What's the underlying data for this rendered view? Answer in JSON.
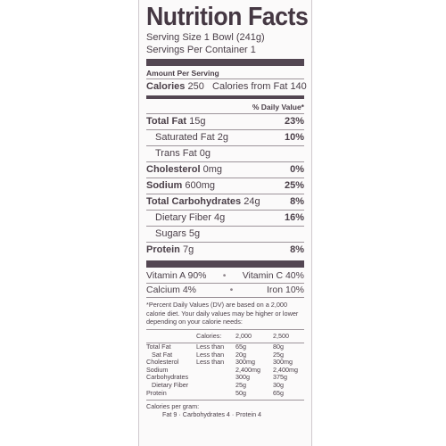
{
  "title": "Nutrition Facts",
  "serving_size": "Serving Size 1 Bowl (241g)",
  "servings_per_container": "Servings Per Container 1",
  "amount_per_serving": "Amount Per Serving",
  "calories": {
    "label": "Calories",
    "value": "250",
    "fat_label": "Calories from Fat",
    "fat_value": "140"
  },
  "dv_header": "% Daily Value*",
  "nutrients": [
    {
      "name": "Total Fat",
      "amount": "15g",
      "dv": "23%"
    },
    {
      "name": "Saturated Fat",
      "amount": "2g",
      "dv": "10%"
    },
    {
      "name": "Trans Fat",
      "amount": "0g",
      "dv": ""
    },
    {
      "name": "Cholesterol",
      "amount": "0mg",
      "dv": "0%"
    },
    {
      "name": "Sodium",
      "amount": "600mg",
      "dv": "25%"
    },
    {
      "name": "Total Carbohydrates",
      "amount": "24g",
      "dv": "8%"
    },
    {
      "name": "Dietary Fiber",
      "amount": "4g",
      "dv": "16%"
    },
    {
      "name": "Sugars",
      "amount": "5g",
      "dv": ""
    },
    {
      "name": "Protein",
      "amount": "7g",
      "dv": "8%"
    }
  ],
  "vitamins": {
    "vitamin_a": "Vitamin A 90%",
    "vitamin_c": "Vitamin C 40%",
    "calcium": "Calcium 4%",
    "iron": "Iron 10%",
    "separator": "•"
  },
  "footnote": "*Percent Daily Values (DV) are based on a 2,000 calorie diet. Your daily values may be higher or lower depending on your calorie needs:",
  "table": {
    "header": [
      "",
      "Calories:",
      "2,000",
      "2,500"
    ],
    "rows": [
      [
        "Total Fat",
        "Less than",
        "65g",
        "80g"
      ],
      [
        "Sat Fat",
        "Less than",
        "20g",
        "25g"
      ],
      [
        "Cholesterol",
        "Less than",
        "300mg",
        "300mg"
      ],
      [
        "Sodium",
        "",
        "2,400mg",
        "2,400mg"
      ],
      [
        "Carbohydrates",
        "",
        "300g",
        "375g"
      ],
      [
        "Dietary Fiber",
        "",
        "25g",
        "30g"
      ],
      [
        "Protein",
        "",
        "50g",
        "65g"
      ]
    ]
  },
  "calories_per_gram": "Calories per gram:",
  "calories_per_gram_values": "Fat 9  ·  Carbohydrates 4  ·  Protein 4"
}
